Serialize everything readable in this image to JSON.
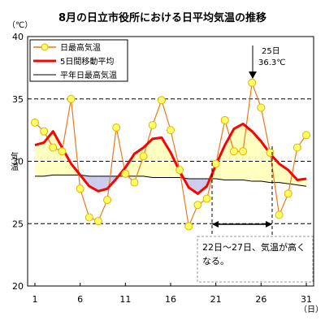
{
  "chart_data": {
    "type": "line",
    "title": "8月の日立市役所における日平均気温の推移",
    "ylabel": "気温",
    "yunit": "（℃）",
    "xunit": "（日）",
    "ylim": [
      20,
      40
    ],
    "xlim": [
      1,
      31
    ],
    "yticks": [
      20,
      25,
      30,
      35,
      40
    ],
    "xticks": [
      1,
      6,
      11,
      16,
      21,
      26,
      31
    ],
    "x": [
      1,
      2,
      3,
      4,
      5,
      6,
      7,
      8,
      9,
      10,
      11,
      12,
      13,
      14,
      15,
      16,
      17,
      18,
      19,
      20,
      21,
      22,
      23,
      24,
      25,
      26,
      27,
      28,
      29,
      30,
      31
    ],
    "series": [
      {
        "name": "日最高気温",
        "color": "#e87a1c",
        "marker_color": "#ffff66",
        "values": [
          33.1,
          32.4,
          31.1,
          30.8,
          35.0,
          27.8,
          25.5,
          25.2,
          26.9,
          32.7,
          29.0,
          28.3,
          30.4,
          32.9,
          34.9,
          32.5,
          29.3,
          24.8,
          26.5,
          27.0,
          29.8,
          33.3,
          30.8,
          30.8,
          36.3,
          34.3,
          30.7,
          25.7,
          27.4,
          31.1,
          32.1
        ]
      },
      {
        "name": "5日間移動平均",
        "color": "#ff0000",
        "values": [
          31.3,
          31.5,
          32.4,
          31.1,
          29.8,
          28.9,
          28.0,
          27.6,
          27.8,
          28.6,
          29.5,
          30.6,
          31.1,
          31.8,
          31.9,
          30.7,
          29.2,
          27.9,
          27.4,
          28.0,
          29.7,
          31.3,
          32.6,
          33.0,
          32.4,
          31.6,
          30.6,
          29.8,
          29.3,
          28.5,
          28.6
        ]
      },
      {
        "name": "平年日最高気温",
        "color": "#000000",
        "values": [
          28.8,
          28.8,
          28.9,
          28.9,
          28.9,
          28.9,
          28.8,
          28.8,
          28.8,
          28.8,
          28.8,
          28.8,
          28.8,
          28.7,
          28.7,
          28.7,
          28.7,
          28.6,
          28.6,
          28.6,
          28.6,
          28.5,
          28.5,
          28.5,
          28.4,
          28.4,
          28.3,
          28.3,
          28.2,
          28.1,
          28.0
        ]
      }
    ],
    "fill_above_color": "#ffffc0",
    "fill_below_color": "#ccccee",
    "grid": true,
    "legend": "top-left",
    "annotations": {
      "peak_day": "25日",
      "peak_value": "36.3℃",
      "range_line1": "22日～27日、気温が高く",
      "range_line2": "なる。"
    }
  }
}
